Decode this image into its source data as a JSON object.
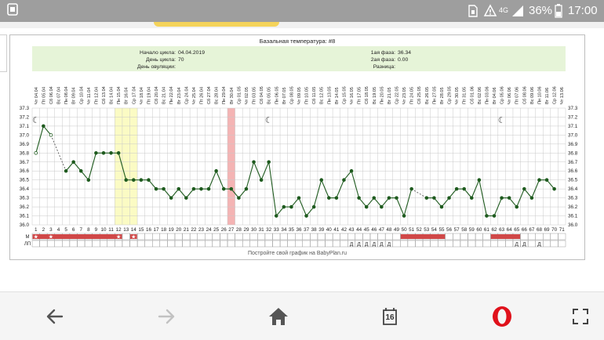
{
  "status_bar": {
    "network": "4G",
    "battery": "36%",
    "time": "17:00"
  },
  "chart": {
    "title": "Базальная температура: #8",
    "info_left": [
      {
        "label": "Начало цикла:",
        "value": "04.04.2019"
      },
      {
        "label": "День цикла:",
        "value": "70"
      },
      {
        "label": "День овуляции:",
        "value": ""
      }
    ],
    "info_right": [
      {
        "label": "1ая фаза:",
        "value": "36.34"
      },
      {
        "label": "2ая фаза:",
        "value": "0.00"
      },
      {
        "label": "Разница:",
        "value": ""
      }
    ],
    "row_labels": {
      "m": "М",
      "lp": "ЛП"
    },
    "footer": "Постройте свой график на BabyPlan.ru",
    "colors": {
      "line": "#1f5b1f",
      "grid": "#c8c8c8",
      "info_bg": "#e6f4d8",
      "yellow": "#fbfbc4",
      "pink": "#f4b4b4",
      "menses": "#d04848"
    }
  },
  "chart_data": {
    "type": "line",
    "x": [
      1,
      2,
      3,
      4,
      5,
      6,
      7,
      8,
      9,
      10,
      11,
      12,
      13,
      14,
      15,
      16,
      17,
      18,
      19,
      20,
      21,
      22,
      23,
      24,
      25,
      26,
      27,
      28,
      29,
      30,
      31,
      32,
      33,
      34,
      35,
      36,
      37,
      38,
      39,
      40,
      41,
      42,
      43,
      44,
      45,
      46,
      47,
      48,
      49,
      50,
      51,
      52,
      53,
      54,
      55,
      56,
      57,
      58,
      59,
      60,
      61,
      62,
      63,
      64,
      65,
      66,
      67,
      68,
      69,
      70,
      71
    ],
    "dates": [
      "Чт 04.04",
      "Пт 05.04",
      "Сб 06.04",
      "Вс 07.04",
      "Пн 08.04",
      "Вт 09.04",
      "Ср 10.04",
      "Чт 11.04",
      "Пт 12.04",
      "Сб 13.04",
      "Вс 14.04",
      "Пн 15.04",
      "Вт 16.04",
      "Ср 17.04",
      "Чт 18.04",
      "Пт 19.04",
      "Сб 20.04",
      "Вс 21.04",
      "Пн 22.04",
      "Вт 23.04",
      "Ср 24.04",
      "Чт 25.04",
      "Пт 26.04",
      "Сб 27.04",
      "Вс 28.04",
      "Пн 29.04",
      "Вт 30.04",
      "Ср 01.05",
      "Чт 02.05",
      "Пт 03.05",
      "Сб 04.05",
      "Вс 05.05",
      "Пн 06.05",
      "Вт 07.05",
      "Ср 08.05",
      "Чт 09.05",
      "Пт 10.05",
      "Сб 11.05",
      "Вс 12.05",
      "Пн 13.05",
      "Вт 14.05",
      "Ср 15.05",
      "Чт 16.05",
      "Пт 17.05",
      "Сб 18.05",
      "Вс 19.05",
      "Пн 20.05",
      "Вт 21.05",
      "Ср 22.05",
      "Чт 23.05",
      "Пт 24.05",
      "Сб 25.05",
      "Вс 26.05",
      "Пн 27.05",
      "Вт 28.05",
      "Ср 29.05",
      "Чт 30.05",
      "Пт 31.05",
      "Сб 01.06",
      "Вс 02.06",
      "Пн 03.06",
      "Вт 04.06",
      "Ср 05.06",
      "Чт 06.06",
      "Пт 07.06",
      "Сб 08.06",
      "Вс 09.06",
      "Пн 10.06",
      "Вт 11.06",
      "Ср 12.06",
      "Чт 13.06"
    ],
    "y": [
      36.8,
      37.1,
      37.0,
      null,
      36.6,
      36.7,
      36.6,
      36.5,
      36.8,
      36.8,
      36.8,
      36.8,
      36.5,
      36.5,
      36.5,
      36.5,
      36.4,
      36.4,
      36.3,
      36.4,
      36.3,
      36.4,
      36.4,
      36.4,
      36.6,
      36.4,
      36.4,
      36.3,
      36.4,
      36.7,
      36.5,
      36.7,
      36.1,
      36.2,
      36.2,
      36.3,
      36.1,
      36.2,
      36.5,
      36.3,
      36.3,
      36.5,
      36.6,
      36.3,
      36.2,
      36.3,
      36.2,
      36.3,
      36.3,
      36.1,
      36.4,
      null,
      36.3,
      36.3,
      36.2,
      36.3,
      36.4,
      36.4,
      36.3,
      36.5,
      36.1,
      36.1,
      36.3,
      36.3,
      36.2,
      36.4,
      36.3,
      36.5,
      36.5,
      36.4,
      null
    ],
    "dashed_segments": [
      [
        3,
        5
      ],
      [
        51,
        53
      ]
    ],
    "ylim": [
      36.0,
      37.3
    ],
    "yticks": [
      36.0,
      36.1,
      36.2,
      36.3,
      36.4,
      36.5,
      36.6,
      36.7,
      36.8,
      36.9,
      37.0,
      37.1,
      37.2,
      37.3
    ],
    "highlight_days": {
      "yellow": [
        12,
        13,
        14
      ],
      "pink": [
        27
      ]
    },
    "moon_days": [
      1,
      32,
      63
    ],
    "menses_ranges": [
      [
        1,
        12
      ],
      [
        14,
        14
      ],
      [
        50,
        55
      ],
      [
        62,
        65
      ]
    ],
    "star_days": [
      1,
      3,
      12,
      14,
      15,
      16,
      17,
      19,
      22,
      25,
      27,
      29,
      47,
      56,
      58,
      61,
      66
    ],
    "d_days": [
      43,
      44,
      45,
      46,
      47,
      48,
      65,
      66,
      68
    ],
    "grid": true
  },
  "nav": {
    "tab_count": "16"
  }
}
